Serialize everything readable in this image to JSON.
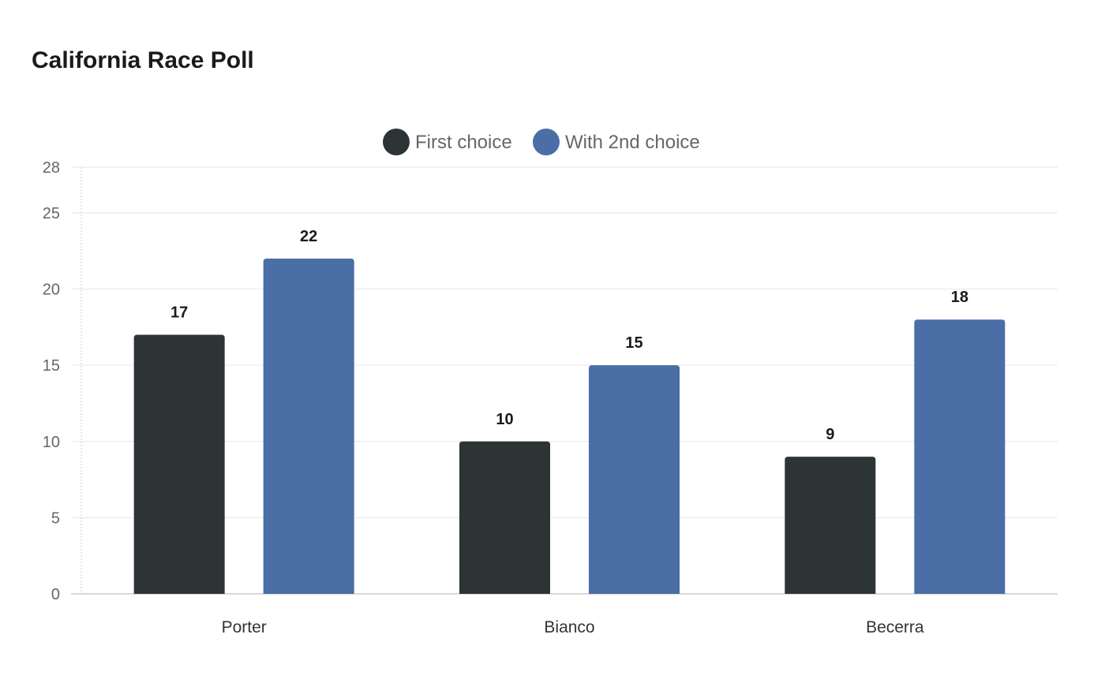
{
  "chart_data": {
    "type": "bar",
    "title": "California Race Poll",
    "xlabel": "",
    "ylabel": "",
    "categories": [
      "Porter",
      "Bianco",
      "Becerra"
    ],
    "series": [
      {
        "name": "First choice",
        "color": "#2d3436",
        "values": [
          17,
          10,
          9
        ]
      },
      {
        "name": "With 2nd choice",
        "color": "#4a6ea5",
        "values": [
          22,
          15,
          18
        ]
      }
    ],
    "ylim": [
      0,
      28
    ],
    "yticks": [
      0,
      5,
      10,
      15,
      20,
      25,
      28
    ],
    "grid": true,
    "legend": "top-center",
    "data_labels": true
  }
}
